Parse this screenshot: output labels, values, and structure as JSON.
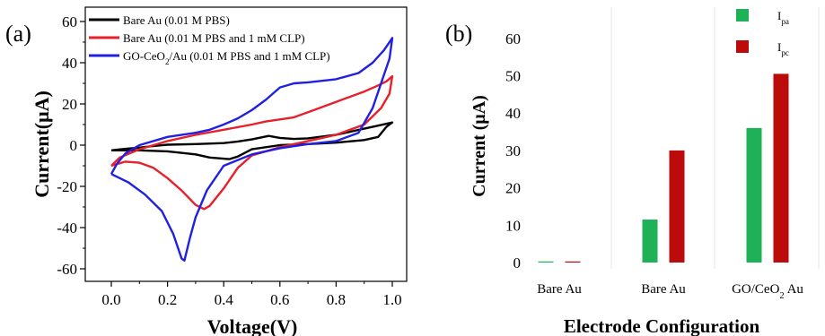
{
  "chart_data": [
    {
      "type": "line",
      "panel_label": "(a)",
      "title": "",
      "xlabel": "Voltage(V)",
      "ylabel": "Current(μA)",
      "xlim": [
        -0.1,
        1.05
      ],
      "ylim": [
        -65,
        65
      ],
      "xticks": [
        "0.0",
        "0.2",
        "0.4",
        "0.6",
        "0.8",
        "1.0"
      ],
      "yticks": [
        "60",
        "40",
        "20",
        "0",
        "-20",
        "-40",
        "-60"
      ],
      "legend_position": "top-left",
      "series": [
        {
          "name": "Bare Au (0.01 M PBS)",
          "color": "#000000",
          "points": [
            [
              0.0,
              -2.5
            ],
            [
              0.05,
              -1.8
            ],
            [
              0.1,
              -1.2
            ],
            [
              0.15,
              -0.4
            ],
            [
              0.2,
              0.2
            ],
            [
              0.3,
              0.5
            ],
            [
              0.4,
              1.0
            ],
            [
              0.45,
              1.8
            ],
            [
              0.5,
              2.8
            ],
            [
              0.56,
              4.5
            ],
            [
              0.6,
              3.5
            ],
            [
              0.65,
              3.0
            ],
            [
              0.7,
              3.3
            ],
            [
              0.8,
              5.0
            ],
            [
              0.9,
              8.0
            ],
            [
              0.95,
              9.5
            ],
            [
              1.0,
              11.0
            ],
            [
              0.98,
              9.0
            ],
            [
              0.95,
              4.0
            ],
            [
              0.9,
              2.5
            ],
            [
              0.8,
              1.2
            ],
            [
              0.7,
              0.5
            ],
            [
              0.6,
              0.0
            ],
            [
              0.5,
              -2.0
            ],
            [
              0.45,
              -5.5
            ],
            [
              0.42,
              -6.8
            ],
            [
              0.35,
              -6.0
            ],
            [
              0.3,
              -4.5
            ],
            [
              0.2,
              -3.0
            ],
            [
              0.1,
              -2.5
            ],
            [
              0.0,
              -2.5
            ]
          ]
        },
        {
          "name": "Bare Au (0.01 M PBS and 1 mM CLP)",
          "color": "#e8202a",
          "points": [
            [
              0.0,
              -10.0
            ],
            [
              0.03,
              -6.0
            ],
            [
              0.1,
              -2.0
            ],
            [
              0.2,
              2.0
            ],
            [
              0.3,
              5.0
            ],
            [
              0.4,
              7.5
            ],
            [
              0.5,
              10.0
            ],
            [
              0.55,
              11.5
            ],
            [
              0.6,
              12.5
            ],
            [
              0.65,
              13.5
            ],
            [
              0.7,
              16.0
            ],
            [
              0.8,
              21.0
            ],
            [
              0.9,
              26.0
            ],
            [
              0.95,
              29.0
            ],
            [
              0.98,
              31.0
            ],
            [
              1.0,
              33.5
            ],
            [
              0.99,
              25.0
            ],
            [
              0.96,
              18.0
            ],
            [
              0.9,
              10.0
            ],
            [
              0.8,
              5.0
            ],
            [
              0.7,
              2.0
            ],
            [
              0.6,
              -1.0
            ],
            [
              0.5,
              -5.0
            ],
            [
              0.45,
              -11.0
            ],
            [
              0.4,
              -21.0
            ],
            [
              0.35,
              -29.5
            ],
            [
              0.33,
              -31.0
            ],
            [
              0.3,
              -29.0
            ],
            [
              0.25,
              -22.0
            ],
            [
              0.2,
              -16.0
            ],
            [
              0.15,
              -11.0
            ],
            [
              0.1,
              -8.5
            ],
            [
              0.05,
              -8.0
            ],
            [
              0.0,
              -10.0
            ]
          ]
        },
        {
          "name": "GO-CeO2/Au (0.01 M PBS and 1 mM CLP)",
          "color": "#2020e0",
          "points": [
            [
              0.0,
              -14.0
            ],
            [
              0.02,
              -9.0
            ],
            [
              0.05,
              -4.0
            ],
            [
              0.1,
              0.0
            ],
            [
              0.2,
              4.0
            ],
            [
              0.3,
              6.0
            ],
            [
              0.35,
              7.5
            ],
            [
              0.4,
              10.0
            ],
            [
              0.45,
              13.0
            ],
            [
              0.5,
              17.0
            ],
            [
              0.55,
              22.0
            ],
            [
              0.6,
              28.0
            ],
            [
              0.65,
              30.0
            ],
            [
              0.7,
              30.5
            ],
            [
              0.8,
              32.0
            ],
            [
              0.88,
              35.0
            ],
            [
              0.93,
              40.0
            ],
            [
              0.97,
              46.0
            ],
            [
              1.0,
              52.0
            ],
            [
              0.99,
              42.0
            ],
            [
              0.96,
              30.0
            ],
            [
              0.93,
              18.0
            ],
            [
              0.88,
              6.0
            ],
            [
              0.8,
              2.0
            ],
            [
              0.7,
              0.5
            ],
            [
              0.6,
              -1.5
            ],
            [
              0.5,
              -4.5
            ],
            [
              0.4,
              -10.0
            ],
            [
              0.34,
              -22.0
            ],
            [
              0.3,
              -35.0
            ],
            [
              0.28,
              -45.0
            ],
            [
              0.26,
              -56.0
            ],
            [
              0.25,
              -55.0
            ],
            [
              0.22,
              -43.0
            ],
            [
              0.18,
              -32.0
            ],
            [
              0.12,
              -24.0
            ],
            [
              0.06,
              -18.0
            ],
            [
              0.0,
              -14.0
            ]
          ]
        }
      ]
    },
    {
      "type": "bar",
      "panel_label": "(b)",
      "title": "",
      "xlabel": "Electrode Configuration",
      "ylabel": "Current (μA)",
      "ylim": [
        0,
        62
      ],
      "yticks": [
        "0",
        "10",
        "20",
        "30",
        "40",
        "50",
        "60"
      ],
      "grid": false,
      "legend_position": "top-right",
      "categories": [
        "Bare Au",
        "Bare Au",
        "GO/CeO2 Au"
      ],
      "series": [
        {
          "name": "Ipa",
          "main": "I",
          "sub": "pa",
          "color": "#1fb158",
          "values": [
            0.2,
            11.5,
            36.0
          ]
        },
        {
          "name": "Ipc",
          "main": "I",
          "sub": "pc",
          "color": "#bb0b0b",
          "values": [
            0.2,
            30.0,
            50.5
          ]
        }
      ]
    }
  ]
}
